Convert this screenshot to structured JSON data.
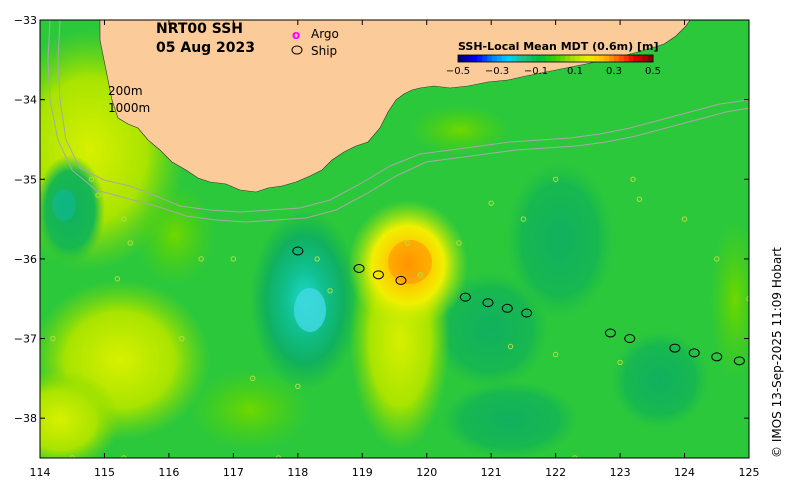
{
  "title": {
    "line1": "NRT00 SSH",
    "line2": "05 Aug 2023"
  },
  "legend": {
    "argo_symbol": "o",
    "argo_label": "Argo",
    "ship_label": "Ship",
    "argo_color": "#ff00ff"
  },
  "isobaths": {
    "shallow": "200m",
    "deep": "1000m"
  },
  "colorbar": {
    "title": "SSH-Local Mean MDT (0.6m) [m]",
    "ticks": [
      "−0.5",
      "−0.3",
      "−0.1",
      "0.1",
      "0.3",
      "0.5"
    ],
    "colors": [
      "#00007f",
      "#0000ff",
      "#007fff",
      "#00d0ff",
      "#20c080",
      "#00c040",
      "#40d000",
      "#a0e000",
      "#e8f000",
      "#ffc000",
      "#ff6000",
      "#e00000",
      "#800000"
    ]
  },
  "axes": {
    "x_ticks": [
      "114",
      "115",
      "116",
      "117",
      "118",
      "119",
      "120",
      "121",
      "122",
      "123",
      "124",
      "125"
    ],
    "y_ticks": [
      "−33",
      "−34",
      "−35",
      "−36",
      "−37",
      "−38"
    ],
    "x_range": [
      114,
      125
    ],
    "y_range": [
      -38.5,
      -33
    ]
  },
  "credit": "© IMOS 13-Sep-2025 11:09 Hobart",
  "colors": {
    "land": "#fbcb9a",
    "ocean_base": "#2cc83c",
    "isobath": "#a8a8a8"
  },
  "ship_positions": [
    [
      118.0,
      -35.9
    ],
    [
      118.95,
      -36.12
    ],
    [
      119.25,
      -36.2
    ],
    [
      119.6,
      -36.27
    ],
    [
      120.6,
      -36.48
    ],
    [
      120.95,
      -36.55
    ],
    [
      121.25,
      -36.62
    ],
    [
      121.55,
      -36.68
    ],
    [
      122.85,
      -36.93
    ],
    [
      123.15,
      -37.0
    ],
    [
      123.85,
      -37.12
    ],
    [
      124.15,
      -37.18
    ],
    [
      124.5,
      -37.23
    ],
    [
      124.85,
      -37.28
    ]
  ]
}
